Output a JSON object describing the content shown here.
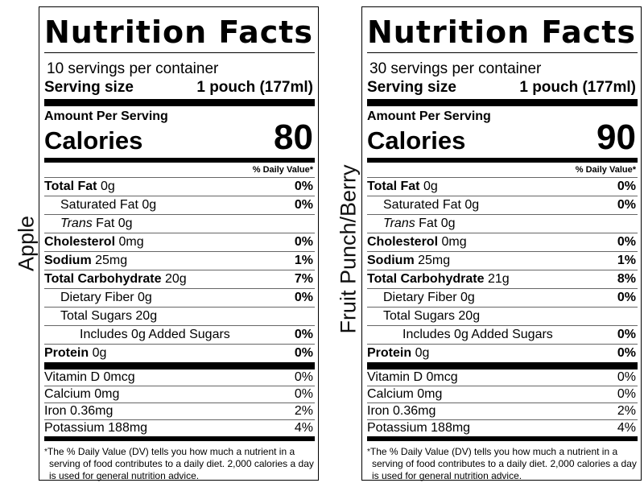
{
  "labels": [
    {
      "side_label": "Apple",
      "title": "Nutrition Facts",
      "servings_per_container": "10 servings per container",
      "serving_size_label": "Serving size",
      "serving_size_value": "1 pouch (177ml)",
      "amount_per_serving": "Amount Per Serving",
      "calories_label": "Calories",
      "calories_value": "80",
      "daily_value_header": "% Daily Value*",
      "nutrients": [
        {
          "name": "Total Fat",
          "amount": "0g",
          "dv": "0%"
        },
        {
          "name": "Saturated Fat",
          "amount": "0g",
          "dv": "0%"
        },
        {
          "name": "Trans",
          "amount": "Fat 0g",
          "dv": ""
        },
        {
          "name": "Cholesterol",
          "amount": "0mg",
          "dv": "0%"
        },
        {
          "name": "Sodium",
          "amount": "25mg",
          "dv": "1%"
        },
        {
          "name": "Total Carbohydrate",
          "amount": "20g",
          "dv": "7%"
        },
        {
          "name": "Dietary Fiber",
          "amount": "0g",
          "dv": "0%"
        },
        {
          "name": "Total Sugars",
          "amount": "20g",
          "dv": ""
        },
        {
          "name": "Includes 0g Added Sugars",
          "amount": "",
          "dv": "0%"
        },
        {
          "name": "Protein",
          "amount": "0g",
          "dv": "0%"
        }
      ],
      "vitamins": [
        {
          "name": "Vitamin D 0mcg",
          "dv": "0%"
        },
        {
          "name": "Calcium 0mg",
          "dv": "0%"
        },
        {
          "name": "Iron 0.36mg",
          "dv": "2%"
        },
        {
          "name": "Potassium 188mg",
          "dv": "4%"
        }
      ],
      "footnote_star": "*",
      "footnote": "The % Daily Value (DV) tells you how much a nutrient in a serving of food contributes to a daily diet. 2,000 calories a day is used for general nutrition advice."
    },
    {
      "side_label": "Fruit Punch/Berry",
      "title": "Nutrition Facts",
      "servings_per_container": "30 servings per container",
      "serving_size_label": "Serving size",
      "serving_size_value": "1 pouch (177ml)",
      "amount_per_serving": "Amount Per Serving",
      "calories_label": "Calories",
      "calories_value": "90",
      "daily_value_header": "% Daily Value*",
      "nutrients": [
        {
          "name": "Total Fat",
          "amount": "0g",
          "dv": "0%"
        },
        {
          "name": "Saturated Fat",
          "amount": "0g",
          "dv": "0%"
        },
        {
          "name": "Trans",
          "amount": "Fat 0g",
          "dv": ""
        },
        {
          "name": "Cholesterol",
          "amount": "0mg",
          "dv": "0%"
        },
        {
          "name": "Sodium",
          "amount": "25mg",
          "dv": "1%"
        },
        {
          "name": "Total Carbohydrate",
          "amount": "21g",
          "dv": "8%"
        },
        {
          "name": "Dietary Fiber",
          "amount": "0g",
          "dv": "0%"
        },
        {
          "name": "Total Sugars",
          "amount": "20g",
          "dv": ""
        },
        {
          "name": "Includes 0g Added Sugars",
          "amount": "",
          "dv": "0%"
        },
        {
          "name": "Protein",
          "amount": "0g",
          "dv": "0%"
        }
      ],
      "vitamins": [
        {
          "name": "Vitamin D 0mcg",
          "dv": "0%"
        },
        {
          "name": "Calcium 0mg",
          "dv": "0%"
        },
        {
          "name": "Iron 0.36mg",
          "dv": "2%"
        },
        {
          "name": "Potassium 188mg",
          "dv": "4%"
        }
      ],
      "footnote_star": "*",
      "footnote": "The % Daily Value (DV) tells you how much a nutrient in a serving of food contributes to a daily diet. 2,000 calories a day is used for general nutrition advice."
    }
  ]
}
